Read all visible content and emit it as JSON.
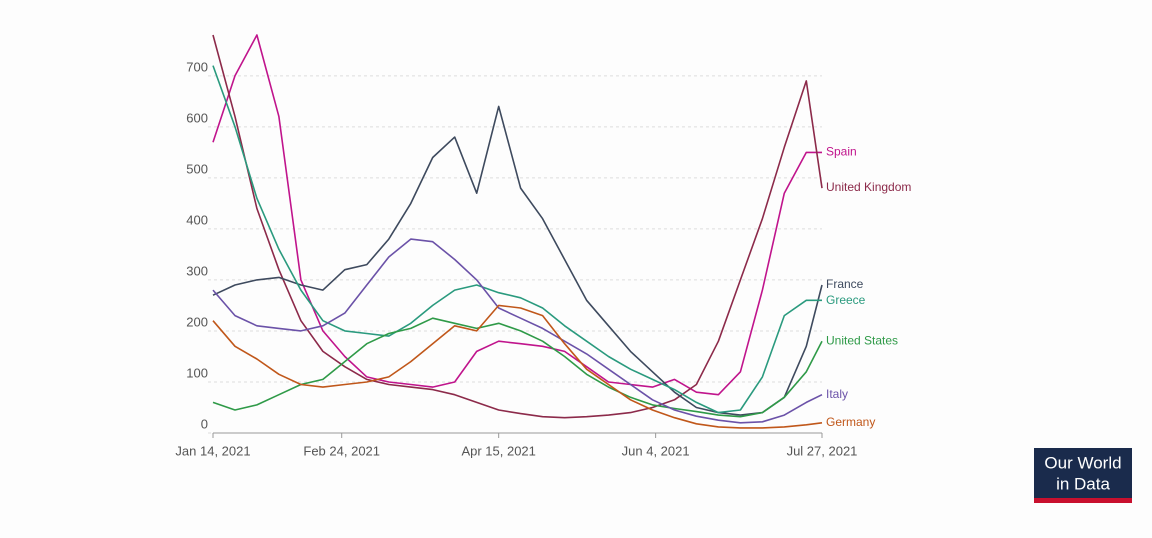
{
  "chart_data": {
    "type": "line",
    "x": [
      "Jan 14, 2021",
      "Jan 21, 2021",
      "Jan 28, 2021",
      "Feb 4, 2021",
      "Feb 11, 2021",
      "Feb 18, 2021",
      "Feb 25, 2021",
      "Mar 4, 2021",
      "Mar 11, 2021",
      "Mar 18, 2021",
      "Mar 25, 2021",
      "Apr 1, 2021",
      "Apr 8, 2021",
      "Apr 15, 2021",
      "Apr 22, 2021",
      "Apr 29, 2021",
      "May 6, 2021",
      "May 13, 2021",
      "May 20, 2021",
      "May 27, 2021",
      "Jun 3, 2021",
      "Jun 10, 2021",
      "Jun 17, 2021",
      "Jun 24, 2021",
      "Jul 1, 2021",
      "Jul 8, 2021",
      "Jul 15, 2021",
      "Jul 22, 2021",
      "Jul 27, 2021"
    ],
    "series": [
      {
        "name": "Spain",
        "color": "#c0148c",
        "values": [
          570,
          700,
          780,
          620,
          300,
          200,
          150,
          110,
          100,
          95,
          90,
          100,
          160,
          180,
          175,
          170,
          160,
          130,
          100,
          95,
          90,
          105,
          80,
          75,
          120,
          280,
          470,
          550,
          550
        ]
      },
      {
        "name": "United Kingdom",
        "color": "#8c2a4a",
        "values": [
          780,
          620,
          440,
          320,
          220,
          160,
          130,
          105,
          95,
          90,
          85,
          75,
          60,
          45,
          38,
          32,
          30,
          32,
          35,
          40,
          50,
          65,
          95,
          180,
          300,
          420,
          560,
          690,
          480
        ]
      },
      {
        "name": "France",
        "color": "#3e4a5e",
        "values": [
          270,
          290,
          300,
          305,
          290,
          280,
          320,
          330,
          380,
          450,
          540,
          580,
          470,
          640,
          480,
          420,
          340,
          260,
          210,
          160,
          120,
          80,
          50,
          40,
          35,
          40,
          70,
          170,
          290
        ]
      },
      {
        "name": "Greece",
        "color": "#2a9a7e",
        "values": [
          720,
          600,
          460,
          360,
          280,
          220,
          200,
          195,
          190,
          215,
          250,
          280,
          290,
          275,
          265,
          245,
          210,
          180,
          150,
          125,
          105,
          85,
          60,
          40,
          45,
          110,
          230,
          260,
          260
        ]
      },
      {
        "name": "United States",
        "color": "#2f9a48",
        "values": [
          60,
          45,
          55,
          75,
          95,
          105,
          140,
          175,
          195,
          205,
          225,
          215,
          205,
          215,
          200,
          180,
          150,
          115,
          90,
          70,
          55,
          48,
          42,
          35,
          32,
          40,
          70,
          120,
          180
        ]
      },
      {
        "name": "Italy",
        "color": "#6b52a8",
        "values": [
          280,
          230,
          210,
          205,
          200,
          210,
          235,
          290,
          345,
          380,
          375,
          340,
          300,
          245,
          225,
          205,
          180,
          155,
          125,
          95,
          65,
          45,
          33,
          25,
          20,
          22,
          35,
          60,
          75
        ]
      },
      {
        "name": "Germany",
        "color": "#c0571a",
        "values": [
          220,
          170,
          145,
          115,
          95,
          90,
          95,
          100,
          110,
          140,
          175,
          210,
          200,
          250,
          245,
          230,
          175,
          125,
          95,
          65,
          45,
          30,
          18,
          12,
          10,
          10,
          12,
          16,
          20
        ]
      }
    ],
    "ylim": [
      0,
      780
    ],
    "yticks": [
      0,
      100,
      200,
      300,
      400,
      500,
      600,
      700
    ],
    "xlim": [
      "Jan 14, 2021",
      "Jul 27, 2021"
    ],
    "xticks": [
      "Jan 14, 2021",
      "Feb 24, 2021",
      "Apr 15, 2021",
      "Jun 4, 2021",
      "Jul 27, 2021"
    ],
    "grid": true
  },
  "logo": {
    "line1": "Our World",
    "line2": "in Data"
  }
}
